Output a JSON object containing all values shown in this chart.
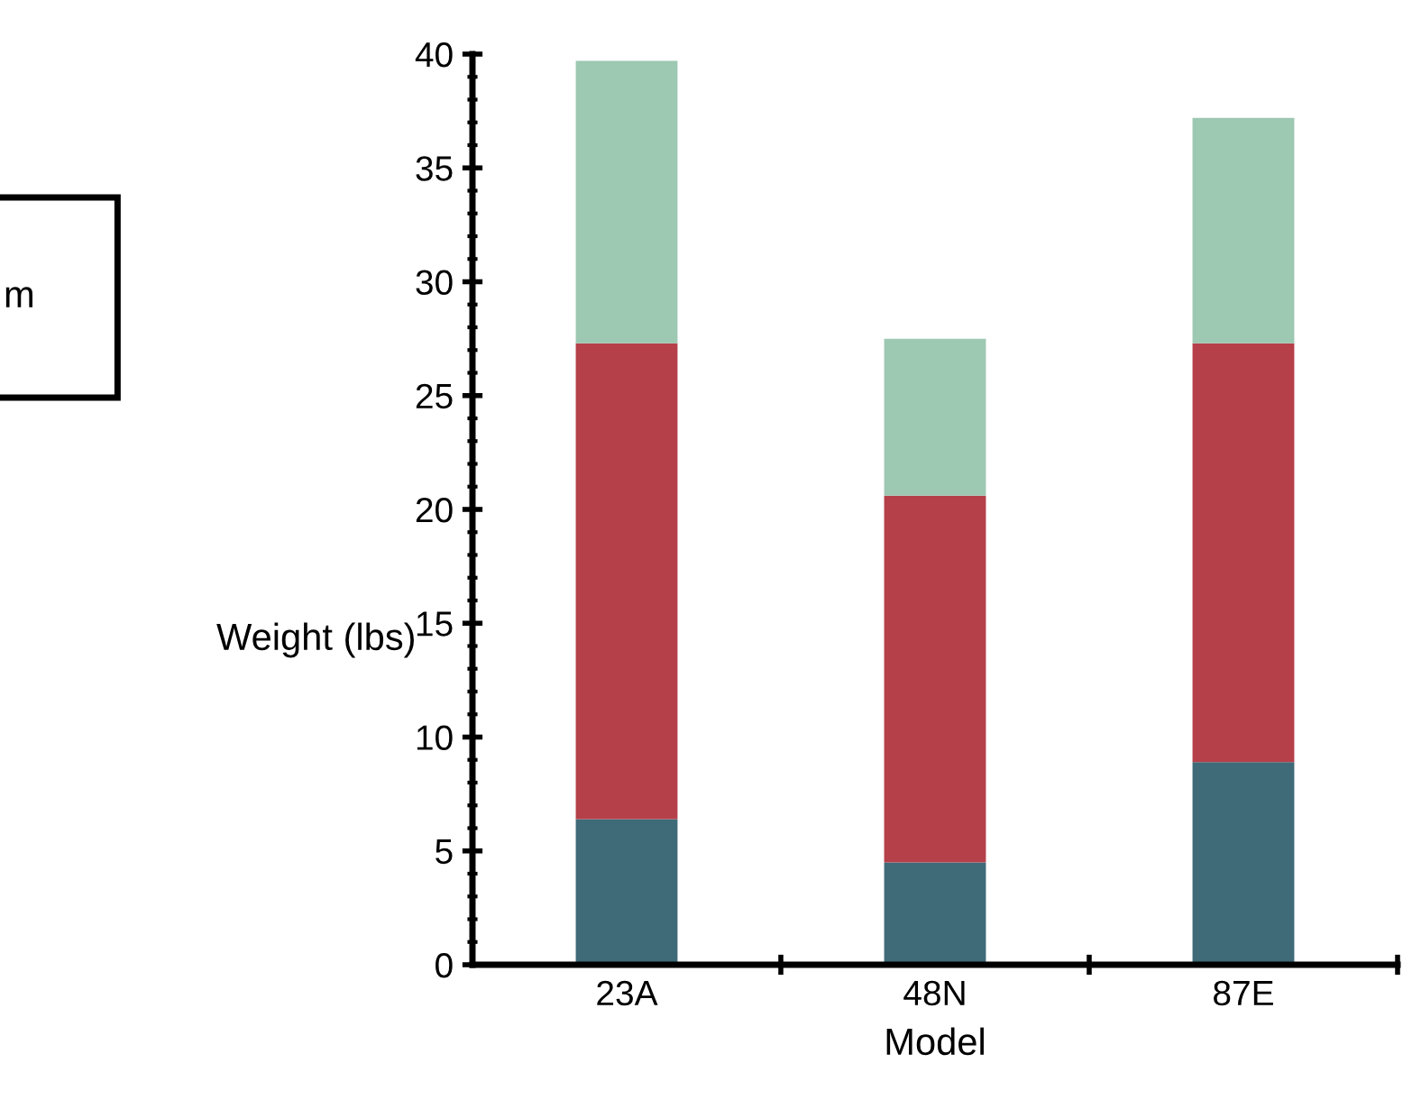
{
  "chart_data": {
    "type": "bar",
    "stacked": true,
    "xlabel": "Model",
    "ylabel": "Weight (lbs)",
    "categories": [
      "23A",
      "48N",
      "87E"
    ],
    "series": [
      {
        "color": "#3f6a78",
        "values": [
          6.4,
          4.5,
          8.9
        ]
      },
      {
        "color": "#b5404a",
        "values": [
          20.9,
          16.1,
          18.4
        ]
      },
      {
        "color": "#9dc8b2",
        "values": [
          12.4,
          6.9,
          9.9
        ]
      }
    ],
    "ylim": [
      0,
      40
    ],
    "yticks": [
      0,
      5,
      10,
      15,
      20,
      25,
      30,
      35,
      40
    ],
    "grid": false,
    "annotations": [
      "m"
    ]
  }
}
